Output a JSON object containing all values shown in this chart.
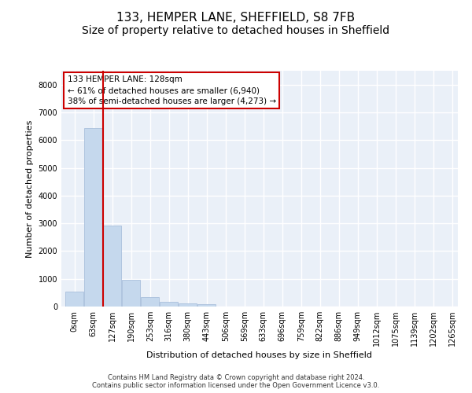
{
  "title": "133, HEMPER LANE, SHEFFIELD, S8 7FB",
  "subtitle": "Size of property relative to detached houses in Sheffield",
  "xlabel": "Distribution of detached houses by size in Sheffield",
  "ylabel": "Number of detached properties",
  "footer_line1": "Contains HM Land Registry data © Crown copyright and database right 2024.",
  "footer_line2": "Contains public sector information licensed under the Open Government Licence v3.0.",
  "bin_labels": [
    "0sqm",
    "63sqm",
    "127sqm",
    "190sqm",
    "253sqm",
    "316sqm",
    "380sqm",
    "443sqm",
    "506sqm",
    "569sqm",
    "633sqm",
    "696sqm",
    "759sqm",
    "822sqm",
    "886sqm",
    "949sqm",
    "1012sqm",
    "1075sqm",
    "1139sqm",
    "1202sqm",
    "1265sqm"
  ],
  "bar_values": [
    550,
    6440,
    2920,
    975,
    350,
    160,
    100,
    80,
    5,
    5,
    0,
    0,
    0,
    0,
    0,
    0,
    0,
    0,
    0,
    0
  ],
  "bar_color": "#c5d8ed",
  "bar_edgecolor": "#a0b8d8",
  "property_line_color": "#cc0000",
  "annotation_text": "133 HEMPER LANE: 128sqm\n← 61% of detached houses are smaller (6,940)\n38% of semi-detached houses are larger (4,273) →",
  "annotation_box_color": "#cc0000",
  "ylim": [
    0,
    8500
  ],
  "yticks": [
    0,
    1000,
    2000,
    3000,
    4000,
    5000,
    6000,
    7000,
    8000
  ],
  "plot_bg_color": "#eaf0f8",
  "grid_color": "#ffffff",
  "title_fontsize": 11,
  "subtitle_fontsize": 10,
  "axis_fontsize": 8,
  "tick_fontsize": 7
}
